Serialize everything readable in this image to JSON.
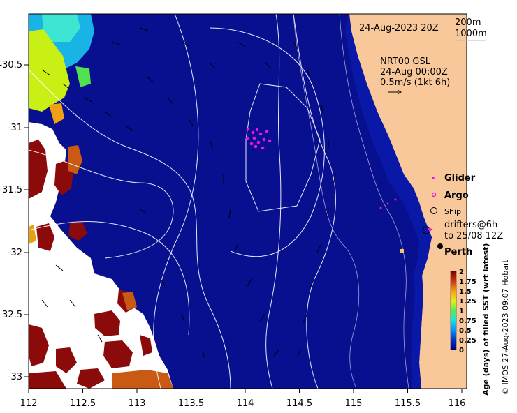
{
  "map": {
    "timestamp": "24-Aug-2023 20Z",
    "isobath_legend": [
      "200m",
      "1000m"
    ],
    "current_info": {
      "line1": "NRT00 GSL",
      "line2": "24-Aug 00:00Z",
      "line3": "0.5m/s (1kt 6h)"
    },
    "legend": {
      "glider": "Glider",
      "argo": "Argo",
      "ship": "Ship",
      "drifters_line1": "drifters@6h",
      "drifters_line2": "to 25/08 12Z"
    },
    "city": "Perth",
    "colorbar": {
      "ticks": [
        "2",
        "1.75",
        "1.5",
        "1.25",
        "1",
        "0.75",
        "0.5",
        "0.25",
        "0"
      ],
      "title": "Age (days) of filled SST (wrt latest)"
    },
    "credit": "© IMOS 27-Aug-2023 09:07 Hobart",
    "x_ticks": [
      "112",
      "112.5",
      "113",
      "113.5",
      "114",
      "114.5",
      "115",
      "115.5",
      "116"
    ],
    "y_ticks": [
      "-30.5",
      "-31",
      "-31.5",
      "-32",
      "-32.5",
      "-33"
    ],
    "colors": {
      "ocean": "#08108f",
      "land": "#f8c89a",
      "white_gap": "#ffffff",
      "dark_red": "#8b0a0a",
      "orange": "#c85a14",
      "yellow_green": "#c8f014",
      "cyan": "#19b4e6",
      "glider": "#e614e6"
    }
  }
}
